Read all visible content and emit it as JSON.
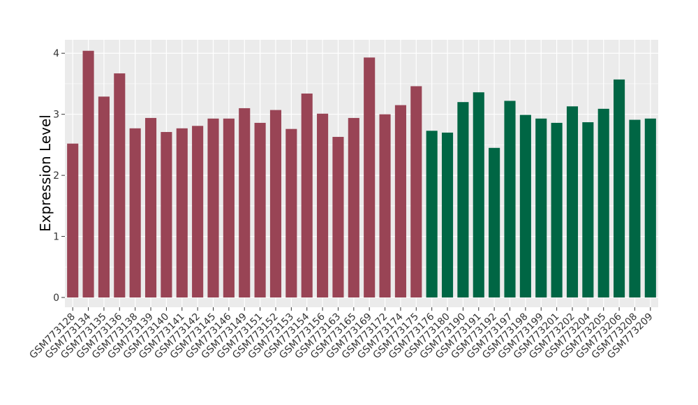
{
  "chart_data": {
    "type": "bar",
    "ylabel": "Expression Level",
    "xlabel": "",
    "ylim": [
      -0.16,
      4.22
    ],
    "yticks": [
      0,
      1,
      2,
      3,
      4
    ],
    "grid": true,
    "legend": "none",
    "colors": {
      "group1": "#994455",
      "group2": "#006644",
      "panel": "#ebebeb",
      "grid": "#ffffff"
    },
    "categories": [
      "GSM773128",
      "GSM773134",
      "GSM773135",
      "GSM773136",
      "GSM773138",
      "GSM773139",
      "GSM773140",
      "GSM773141",
      "GSM773142",
      "GSM773145",
      "GSM773146",
      "GSM773149",
      "GSM773151",
      "GSM773152",
      "GSM773153",
      "GSM773154",
      "GSM773156",
      "GSM773163",
      "GSM773165",
      "GSM773169",
      "GSM773172",
      "GSM773174",
      "GSM773175",
      "GSM773176",
      "GSM773180",
      "GSM773190",
      "GSM773191",
      "GSM773192",
      "GSM773197",
      "GSM773198",
      "GSM773199",
      "GSM773201",
      "GSM773202",
      "GSM773204",
      "GSM773205",
      "GSM773206",
      "GSM773208",
      "GSM773209"
    ],
    "values": [
      2.52,
      4.04,
      3.29,
      3.67,
      2.77,
      2.94,
      2.71,
      2.77,
      2.81,
      2.93,
      2.93,
      3.1,
      2.86,
      3.07,
      2.76,
      3.34,
      3.01,
      2.63,
      2.94,
      3.93,
      3.0,
      3.15,
      3.46,
      2.73,
      2.7,
      3.2,
      3.36,
      2.45,
      3.22,
      2.99,
      2.93,
      2.86,
      3.13,
      2.87,
      3.09,
      3.57,
      2.91,
      2.93
    ],
    "groups": [
      1,
      1,
      1,
      1,
      1,
      1,
      1,
      1,
      1,
      1,
      1,
      1,
      1,
      1,
      1,
      1,
      1,
      1,
      1,
      1,
      1,
      1,
      1,
      2,
      2,
      2,
      2,
      2,
      2,
      2,
      2,
      2,
      2,
      2,
      2,
      2,
      2,
      2
    ]
  }
}
